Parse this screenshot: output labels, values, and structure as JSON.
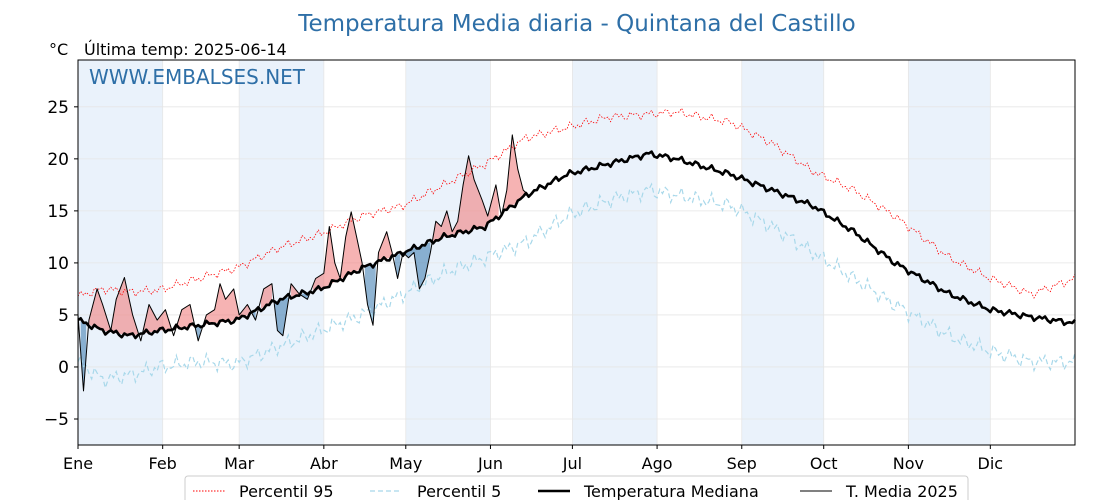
{
  "chart_data": {
    "type": "line",
    "title": "Temperatura Media diaria - Quintana del Castillo",
    "unit_label": "°C",
    "subtitle": "Última temp: 2025-06-14",
    "watermark": "WWW.EMBALSES.NET",
    "xlabel": "",
    "ylabel": "",
    "ylim": [
      -7.5,
      29.5
    ],
    "xlim": [
      1,
      366
    ],
    "y_ticks": [
      -5,
      0,
      5,
      10,
      15,
      20,
      25
    ],
    "y_tick_labels": [
      "−5",
      "0",
      "5",
      "10",
      "15",
      "20",
      "25"
    ],
    "month_starts": [
      1,
      32,
      60,
      91,
      121,
      152,
      182,
      213,
      244,
      274,
      305,
      335
    ],
    "month_labels": [
      "Ene",
      "Feb",
      "Mar",
      "Abr",
      "May",
      "Jun",
      "Jul",
      "Ago",
      "Sep",
      "Oct",
      "Nov",
      "Dic"
    ],
    "shaded_months": [
      "Ene",
      "Mar",
      "May",
      "Jul",
      "Sep",
      "Nov"
    ],
    "grid": true,
    "legend_position": "bottom-center",
    "colors": {
      "p95": "#ff0000",
      "p5": "#a8d8ea",
      "median": "#000000",
      "current": "#000000",
      "above_fill": "#f08080",
      "below_fill": "#4682b4",
      "month_shade": "#eaf2fb",
      "title": "#2e6fa7",
      "watermark": "#2e6fa7"
    },
    "series": [
      {
        "name": "Percentil 95",
        "style": "dotted-thin-red",
        "points": [
          [
            1,
            6.8
          ],
          [
            10,
            7.5
          ],
          [
            20,
            7.2
          ],
          [
            31,
            7.4
          ],
          [
            45,
            8.5
          ],
          [
            59,
            9.5
          ],
          [
            75,
            11.5
          ],
          [
            90,
            12.8
          ],
          [
            105,
            14.5
          ],
          [
            120,
            15.5
          ],
          [
            135,
            17.5
          ],
          [
            150,
            19.5
          ],
          [
            165,
            22.0
          ],
          [
            180,
            23.0
          ],
          [
            195,
            24.0
          ],
          [
            210,
            24.3
          ],
          [
            220,
            24.5
          ],
          [
            240,
            23.5
          ],
          [
            255,
            21.5
          ],
          [
            270,
            18.8
          ],
          [
            285,
            17.0
          ],
          [
            300,
            14.5
          ],
          [
            310,
            12.5
          ],
          [
            320,
            10.5
          ],
          [
            335,
            8.5
          ],
          [
            350,
            7.0
          ],
          [
            366,
            8.5
          ]
        ]
      },
      {
        "name": "Percentil 5",
        "style": "dashed-light-blue",
        "points": [
          [
            1,
            0.5
          ],
          [
            10,
            -1.2
          ],
          [
            20,
            -0.8
          ],
          [
            31,
            0.0
          ],
          [
            45,
            0.5
          ],
          [
            59,
            0.3
          ],
          [
            75,
            2.0
          ],
          [
            90,
            3.5
          ],
          [
            105,
            5.0
          ],
          [
            120,
            7.0
          ],
          [
            135,
            9.0
          ],
          [
            150,
            10.5
          ],
          [
            165,
            12.0
          ],
          [
            180,
            14.5
          ],
          [
            195,
            16.0
          ],
          [
            210,
            17.0
          ],
          [
            220,
            16.5
          ],
          [
            240,
            15.5
          ],
          [
            255,
            13.5
          ],
          [
            270,
            11.0
          ],
          [
            285,
            8.5
          ],
          [
            300,
            6.0
          ],
          [
            310,
            4.5
          ],
          [
            320,
            3.0
          ],
          [
            335,
            1.5
          ],
          [
            350,
            0.5
          ],
          [
            366,
            0.5
          ]
        ]
      },
      {
        "name": "Temperatura Mediana",
        "style": "thick-black",
        "points": [
          [
            1,
            4.5
          ],
          [
            10,
            3.5
          ],
          [
            20,
            3.0
          ],
          [
            31,
            3.5
          ],
          [
            45,
            4.0
          ],
          [
            59,
            4.5
          ],
          [
            75,
            6.5
          ],
          [
            90,
            7.5
          ],
          [
            105,
            9.5
          ],
          [
            120,
            11.0
          ],
          [
            135,
            12.5
          ],
          [
            150,
            13.5
          ],
          [
            165,
            16.5
          ],
          [
            180,
            18.5
          ],
          [
            195,
            19.5
          ],
          [
            210,
            20.5
          ],
          [
            220,
            20.0
          ],
          [
            240,
            18.5
          ],
          [
            255,
            17.0
          ],
          [
            270,
            15.5
          ],
          [
            285,
            13.0
          ],
          [
            300,
            10.0
          ],
          [
            310,
            8.5
          ],
          [
            320,
            7.0
          ],
          [
            335,
            5.5
          ],
          [
            350,
            4.8
          ],
          [
            366,
            4.2
          ]
        ]
      },
      {
        "name": "T. Media 2025",
        "style": "thin-black",
        "points": [
          [
            1,
            5.0
          ],
          [
            3,
            -2.3
          ],
          [
            5,
            4.5
          ],
          [
            8,
            7.5
          ],
          [
            10,
            6.0
          ],
          [
            13,
            3.5
          ],
          [
            15,
            6.5
          ],
          [
            18,
            8.6
          ],
          [
            21,
            5.0
          ],
          [
            24,
            2.5
          ],
          [
            27,
            6.0
          ],
          [
            30,
            4.5
          ],
          [
            33,
            5.5
          ],
          [
            36,
            3.0
          ],
          [
            39,
            5.5
          ],
          [
            42,
            6.0
          ],
          [
            45,
            2.5
          ],
          [
            48,
            5.0
          ],
          [
            51,
            5.5
          ],
          [
            53,
            8.0
          ],
          [
            55,
            6.5
          ],
          [
            58,
            7.5
          ],
          [
            60,
            5.0
          ],
          [
            63,
            6.0
          ],
          [
            66,
            4.5
          ],
          [
            69,
            7.5
          ],
          [
            72,
            8.0
          ],
          [
            74,
            3.5
          ],
          [
            76,
            3.0
          ],
          [
            79,
            8.0
          ],
          [
            82,
            7.0
          ],
          [
            85,
            6.5
          ],
          [
            88,
            8.5
          ],
          [
            91,
            9.0
          ],
          [
            93,
            13.5
          ],
          [
            95,
            10.0
          ],
          [
            97,
            8.5
          ],
          [
            99,
            12.5
          ],
          [
            101,
            14.9
          ],
          [
            103,
            12.5
          ],
          [
            105,
            10.0
          ],
          [
            107,
            6.0
          ],
          [
            109,
            4.0
          ],
          [
            111,
            11.0
          ],
          [
            114,
            13.0
          ],
          [
            116,
            11.0
          ],
          [
            118,
            8.5
          ],
          [
            120,
            11.0
          ],
          [
            122,
            10.5
          ],
          [
            124,
            11.0
          ],
          [
            126,
            7.5
          ],
          [
            128,
            8.5
          ],
          [
            130,
            11.0
          ],
          [
            132,
            14.0
          ],
          [
            134,
            13.5
          ],
          [
            136,
            15.0
          ],
          [
            138,
            13.0
          ],
          [
            140,
            14.0
          ],
          [
            142,
            17.5
          ],
          [
            144,
            20.3
          ],
          [
            146,
            18.0
          ],
          [
            149,
            16.0
          ],
          [
            151,
            14.5
          ],
          [
            154,
            17.5
          ],
          [
            156,
            14.5
          ],
          [
            158,
            17.0
          ],
          [
            160,
            22.3
          ],
          [
            162,
            19.0
          ],
          [
            164,
            17.0
          ],
          [
            166,
            16.5
          ]
        ]
      }
    ]
  },
  "legend": {
    "items": [
      {
        "label": "Percentil 95",
        "key": "p95"
      },
      {
        "label": "Percentil 5",
        "key": "p5"
      },
      {
        "label": "Temperatura Mediana",
        "key": "median"
      },
      {
        "label": "T. Media 2025",
        "key": "current"
      }
    ]
  }
}
